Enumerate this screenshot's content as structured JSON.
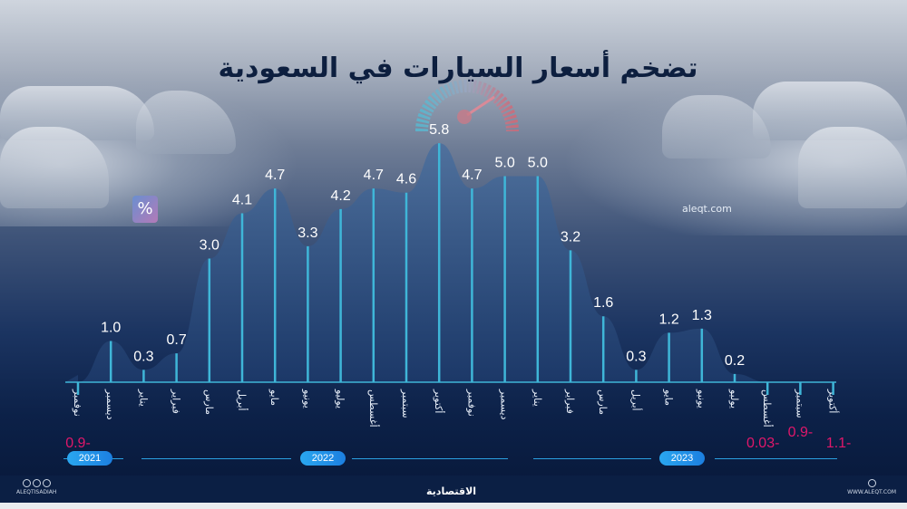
{
  "header": {
    "title": "تضخم أسعار السيارات في السعودية",
    "unit_badge": "%",
    "site": "aleqt.com"
  },
  "chart_data": {
    "type": "area",
    "title": "تضخم أسعار السيارات في السعودية",
    "ylabel": "%",
    "xlabel": "",
    "grid": false,
    "categories": [
      "نوفمبر",
      "ديسمبر",
      "يناير",
      "فبراير",
      "مارس",
      "أبريل",
      "مايو",
      "يونيو",
      "يوليو",
      "أغسطس",
      "سبتمبر",
      "أكتوبر",
      "نوفمبر",
      "ديسمبر",
      "يناير",
      "فبراير",
      "مارس",
      "أبريل",
      "مايو",
      "يونيو",
      "يوليو",
      "أغسطس",
      "سبتمبر",
      "أكتوبر"
    ],
    "years": [
      {
        "label": "2021",
        "months": [
          "نوفمبر",
          "ديسمبر"
        ]
      },
      {
        "label": "2022",
        "months": [
          "يناير",
          "فبراير",
          "مارس",
          "أبريل",
          "مايو",
          "يونيو",
          "يوليو",
          "أغسطس",
          "سبتمبر",
          "أكتوبر",
          "نوفمبر",
          "ديسمبر"
        ]
      },
      {
        "label": "2023",
        "months": [
          "يناير",
          "فبراير",
          "مارس",
          "أبريل",
          "مايو",
          "يونيو",
          "يوليو",
          "أغسطس",
          "سبتمبر",
          "أكتوبر"
        ]
      }
    ],
    "values": [
      -0.9,
      1.0,
      0.3,
      0.7,
      3.0,
      4.1,
      4.7,
      3.3,
      4.2,
      4.7,
      4.6,
      5.8,
      4.7,
      5.0,
      5.0,
      3.2,
      1.6,
      0.3,
      1.2,
      1.3,
      0.2,
      -0.03,
      -0.9,
      -1.1
    ],
    "labels": [
      "0.9-",
      "1.0",
      "0.3",
      "0.7",
      "3.0",
      "4.1",
      "4.7",
      "3.3",
      "4.2",
      "4.7",
      "4.6",
      "5.8",
      "4.7",
      "5.0",
      "5.0",
      "3.2",
      "1.6",
      "0.3",
      "1.2",
      "1.3",
      "0.2",
      "0.03-",
      "0.9-",
      "1.1-"
    ],
    "ylim": [
      -1.1,
      6.0
    ]
  },
  "years": {
    "y2021": "2021",
    "y2022": "2022",
    "y2023": "2023"
  },
  "footer": {
    "logo": "الاقتصادية",
    "handle": "ALEQTISADIAH",
    "url": "WWW.ALEQT.COM"
  },
  "colors": {
    "accent": "#3fb6d8",
    "negative": "#e0176a",
    "background": "#0d2349",
    "title": "#0d1f3f"
  }
}
